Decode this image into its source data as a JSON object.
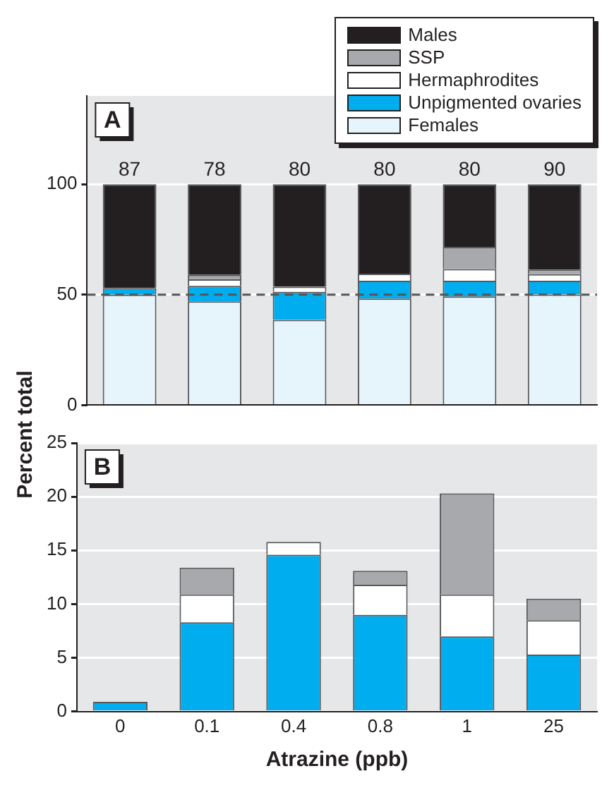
{
  "chart_data": [
    {
      "type": "bar",
      "title": "A",
      "ylabel": "Percent total",
      "stacked": true,
      "categories": [
        "0",
        "0.1",
        "0.4",
        "0.8",
        "1",
        "25"
      ],
      "tick_labels": "y",
      "ylim": [
        0,
        140
      ],
      "yticks": [
        0,
        50,
        100
      ],
      "grid": "y",
      "legend": "top right",
      "series": [
        {
          "name": "Females",
          "color": "#e6f5fc",
          "values": [
            50,
            47,
            38.6,
            48.3,
            49.2,
            50.1
          ]
        },
        {
          "name": "Unpigmented ovaries",
          "color": "#00aeef",
          "values": [
            3,
            7,
            12.7,
            8,
            7.1,
            6.2
          ]
        },
        {
          "name": "Hermaphrodites",
          "color": "#ffffff",
          "values": [
            0,
            3,
            2.3,
            3.2,
            5.3,
            3
          ]
        },
        {
          "name": "SSP",
          "color": "#a7a9ac",
          "values": [
            0,
            2,
            0,
            0,
            10.1,
            2.1
          ]
        },
        {
          "name": "Males",
          "color": "#231f20",
          "values": [
            47,
            41,
            46.4,
            40.5,
            28.3,
            38.6
          ]
        }
      ],
      "ref_lines": [
        {
          "axis": "y",
          "value": 50,
          "color": "#555555",
          "line_style": "dashed"
        }
      ],
      "annotations": [
        {
          "text": "87",
          "x": "0",
          "y": 100
        },
        {
          "text": "78",
          "x": "0.1",
          "y": 100
        },
        {
          "text": "80",
          "x": "0.4",
          "y": 100
        },
        {
          "text": "80",
          "x": "0.8",
          "y": 100
        },
        {
          "text": "80",
          "x": "1",
          "y": 100
        },
        {
          "text": "90",
          "x": "25",
          "y": 100
        }
      ]
    },
    {
      "type": "bar",
      "title": "B",
      "xlabel": "Atrazine (ppb)",
      "stacked": true,
      "categories": [
        "0",
        "0.1",
        "0.4",
        "0.8",
        "1",
        "25"
      ],
      "ylim": [
        0,
        25
      ],
      "yticks": [
        0,
        5,
        10,
        15,
        20,
        25
      ],
      "grid": "y",
      "series": [
        {
          "color": "#00aeef",
          "values": [
            0.9,
            8.3,
            14.6,
            9,
            7,
            5.3
          ]
        },
        {
          "color": "#ffffff",
          "values": [
            0,
            2.6,
            1.2,
            2.8,
            3.9,
            3.2
          ]
        },
        {
          "color": "#a7a9ac",
          "values": [
            0,
            2.5,
            0,
            1.3,
            9.4,
            2
          ]
        }
      ]
    }
  ]
}
